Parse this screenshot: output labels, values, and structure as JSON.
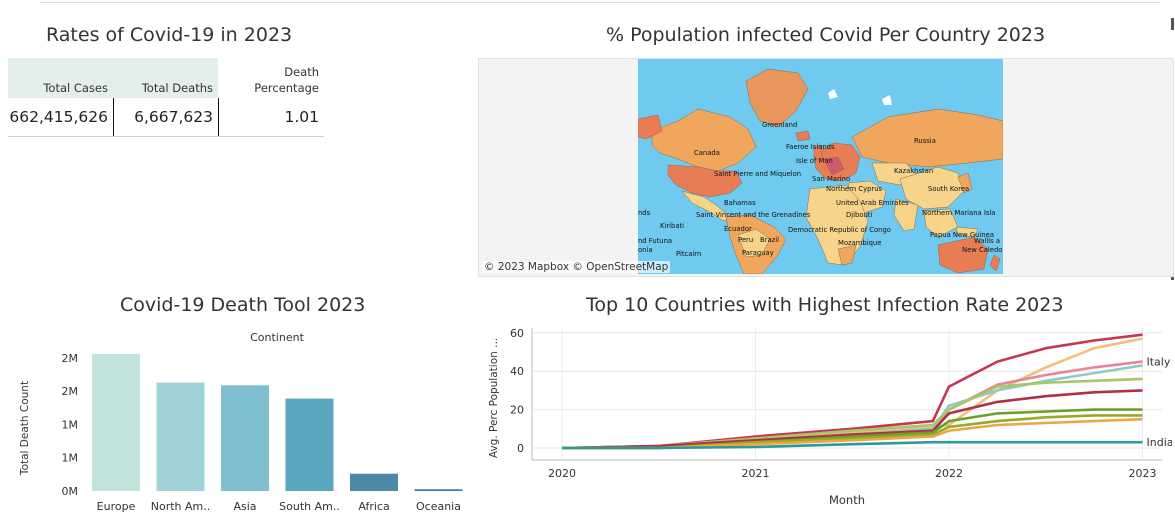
{
  "kpi": {
    "title": "Rates of Covid-19 in 2023",
    "headers": [
      "Total Cases",
      "Total Deaths",
      "Death",
      "Percentage"
    ],
    "values": [
      "662,415,626",
      "6,667,623",
      "1.01"
    ]
  },
  "map": {
    "title": "% Population infected Covid Per Country 2023",
    "credit": "© 2023 Mapbox  © OpenStreetMap",
    "labels": [
      "Greenland",
      "Faeroe Islands",
      "Isle of Man",
      "Canada",
      "Russia",
      "Kazakhstan",
      "Saint Pierre and Miquelon",
      "San Marino",
      "Northern Cyprus",
      "South Korea",
      "Bahamas",
      "United Arab Emirates",
      "Djibouti",
      "nds",
      "Saint Vincent and the Grenadines",
      "Kiribati",
      "Ecuador",
      "Democratic Republic of Congo",
      "Northern Mariana Isla",
      "Papua New Guinea",
      "Peru",
      "Brazil",
      "nd Futuna",
      "onia",
      "Mozambique",
      "Wallis a",
      "New Caledo",
      "Pitcairn",
      "Paraguay"
    ],
    "colors": {
      "ocean": "#70c9ee",
      "high": "#e87c54",
      "mid": "#f0a65c",
      "low": "#f6d48a",
      "land": "#e8965c"
    }
  },
  "chart_data": [
    {
      "type": "bar",
      "title": "Covid-19 Death Tool 2023",
      "header": "Continent",
      "categories": [
        "Europe",
        "North Am..",
        "Asia",
        "South Am..",
        "Africa",
        "Oceania"
      ],
      "values": [
        2060000,
        1630000,
        1590000,
        1390000,
        260000,
        26000
      ],
      "ylabel": "Total Death Count",
      "ytick_labels": [
        "2M",
        "2M",
        "1M",
        "1M",
        "0M"
      ],
      "ytick_values": [
        2000000,
        1500000,
        1000000,
        500000,
        0
      ],
      "ylim": [
        0,
        2060000
      ],
      "colors": [
        "#c3e4dc",
        "#9fd3d6",
        "#80bfcf",
        "#58a6c0",
        "#4c88a8",
        "#4478a0"
      ]
    },
    {
      "type": "line",
      "title": "Top 10 Countries with Highest Infection Rate 2023",
      "xlabel": "Month",
      "ylabel": "Avg. Perc Population ...",
      "x_ticks": [
        "2020",
        "2021",
        "2022",
        "2023"
      ],
      "y_ticks": [
        "0",
        "20",
        "40",
        "60"
      ],
      "ylim": [
        0,
        62
      ],
      "x": [
        "2020-01",
        "2020-07",
        "2021-01",
        "2021-07",
        "2021-12",
        "2022-01",
        "2022-04",
        "2022-07",
        "2022-10",
        "2023-01"
      ],
      "series": [
        {
          "name": "",
          "color": "#c23850",
          "values": [
            0,
            1,
            6,
            10,
            14,
            32,
            45,
            52,
            56,
            59
          ]
        },
        {
          "name": "",
          "color": "#f0c078",
          "values": [
            0,
            0,
            4,
            8,
            11,
            12,
            30,
            42,
            52,
            57
          ]
        },
        {
          "name": "Italy",
          "color": "#e8849a",
          "values": [
            0,
            1,
            4,
            7,
            10,
            20,
            33,
            38,
            42,
            45
          ]
        },
        {
          "name": "",
          "color": "#8ec8c8",
          "values": [
            0,
            1,
            4,
            7,
            10,
            22,
            30,
            35,
            39,
            43
          ]
        },
        {
          "name": "",
          "color": "#a8c868",
          "values": [
            0,
            1,
            5,
            9,
            12,
            20,
            32,
            34,
            35,
            36
          ]
        },
        {
          "name": "",
          "color": "#b03048",
          "values": [
            0,
            1,
            4,
            7,
            9,
            18,
            24,
            27,
            29,
            30
          ]
        },
        {
          "name": "",
          "color": "#6aa02a",
          "values": [
            0,
            0,
            3,
            6,
            8,
            14,
            18,
            19,
            20,
            20
          ]
        },
        {
          "name": "",
          "color": "#9aa828",
          "values": [
            0,
            0,
            3,
            5,
            7,
            11,
            14,
            16,
            17,
            17
          ]
        },
        {
          "name": "",
          "color": "#e8a848",
          "values": [
            0,
            0,
            2,
            4,
            6,
            9,
            12,
            13,
            14,
            15
          ]
        },
        {
          "name": "India",
          "color": "#2a9a9a",
          "values": [
            0,
            0,
            0.5,
            2,
            3,
            3,
            3,
            3,
            3,
            3
          ]
        }
      ]
    }
  ]
}
